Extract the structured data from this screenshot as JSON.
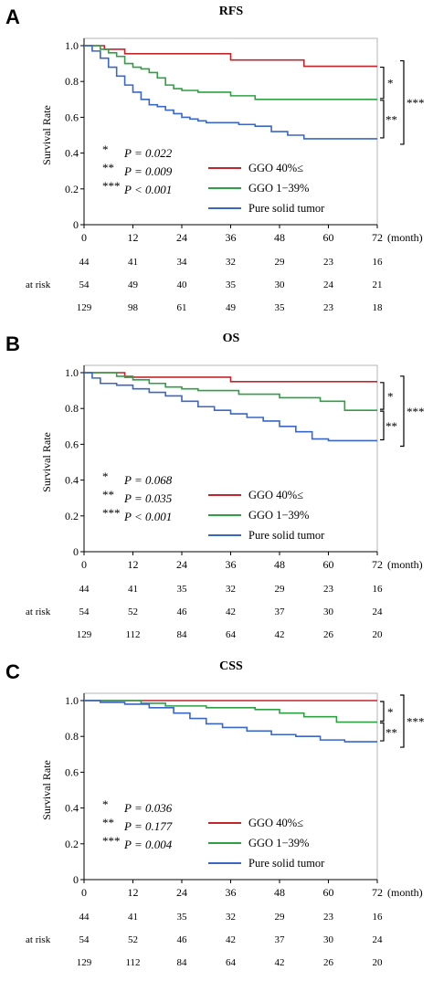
{
  "colors": {
    "ggo40": "#c0272d",
    "ggo1_39": "#2ea043",
    "pure_solid": "#3a67c4"
  },
  "legend_labels": [
    "GGO 40%≤",
    "GGO 1−39%",
    "Pure solid tumor"
  ],
  "pvalue_stars": [
    "*",
    "**",
    "***"
  ],
  "at_risk_label": "at risk",
  "month_label": "(month)",
  "ylabel": "Survival Rate",
  "chart_data": [
    {
      "type": "line",
      "panel": "A",
      "title": "RFS",
      "xlabel": "(month)",
      "ylabel": "Survival Rate",
      "xlim": [
        0,
        72
      ],
      "ylim": [
        0,
        1
      ],
      "x_ticks": [
        "0",
        "12",
        "24",
        "36",
        "48",
        "60",
        "72"
      ],
      "y_ticks": [
        "0",
        "0.2",
        "0.4",
        "0.6",
        "0.8",
        "1.0"
      ],
      "series": [
        {
          "name": "GGO 40%≤",
          "color": "#c0272d",
          "x": [
            0,
            5,
            10,
            36,
            54,
            72
          ],
          "y": [
            1.0,
            0.98,
            0.955,
            0.92,
            0.885,
            0.885
          ]
        },
        {
          "name": "GGO 1−39%",
          "color": "#2ea043",
          "x": [
            0,
            4,
            6,
            8,
            10,
            12,
            14,
            16,
            18,
            20,
            22,
            24,
            28,
            36,
            42,
            72
          ],
          "y": [
            1.0,
            0.98,
            0.96,
            0.94,
            0.9,
            0.88,
            0.87,
            0.85,
            0.82,
            0.78,
            0.76,
            0.75,
            0.74,
            0.72,
            0.7,
            0.7
          ]
        },
        {
          "name": "Pure solid tumor",
          "color": "#3a67c4",
          "x": [
            0,
            2,
            4,
            6,
            8,
            10,
            12,
            14,
            16,
            18,
            20,
            22,
            24,
            26,
            28,
            30,
            34,
            38,
            42,
            46,
            50,
            54,
            72
          ],
          "y": [
            1.0,
            0.97,
            0.93,
            0.88,
            0.83,
            0.78,
            0.74,
            0.7,
            0.67,
            0.66,
            0.64,
            0.62,
            0.6,
            0.59,
            0.58,
            0.57,
            0.57,
            0.56,
            0.55,
            0.52,
            0.5,
            0.48,
            0.48
          ]
        }
      ],
      "pvalues": [
        "P = 0.022",
        "P = 0.009",
        "P < 0.001"
      ],
      "at_risk": [
        [
          "44",
          "41",
          "34",
          "32",
          "29",
          "23",
          "16"
        ],
        [
          "54",
          "49",
          "40",
          "35",
          "30",
          "24",
          "21"
        ],
        [
          "129",
          "98",
          "61",
          "49",
          "35",
          "23",
          "18"
        ]
      ],
      "brackets": [
        "*",
        "**",
        "***"
      ]
    },
    {
      "type": "line",
      "panel": "B",
      "title": "OS",
      "xlabel": "(month)",
      "ylabel": "Survival Rate",
      "xlim": [
        0,
        72
      ],
      "ylim": [
        0,
        1
      ],
      "x_ticks": [
        "0",
        "12",
        "24",
        "36",
        "48",
        "60",
        "72"
      ],
      "y_ticks": [
        "0",
        "0.2",
        "0.4",
        "0.6",
        "0.8",
        "1.0"
      ],
      "series": [
        {
          "name": "GGO 40%≤",
          "color": "#c0272d",
          "x": [
            0,
            10,
            36,
            72
          ],
          "y": [
            1.0,
            0.975,
            0.95,
            0.95
          ]
        },
        {
          "name": "GGO 1−39%",
          "color": "#2ea043",
          "x": [
            0,
            8,
            12,
            16,
            20,
            24,
            28,
            38,
            48,
            58,
            64,
            72
          ],
          "y": [
            1.0,
            0.98,
            0.96,
            0.94,
            0.92,
            0.91,
            0.9,
            0.88,
            0.86,
            0.84,
            0.79,
            0.79
          ]
        },
        {
          "name": "Pure solid tumor",
          "color": "#3a67c4",
          "x": [
            0,
            2,
            4,
            8,
            12,
            16,
            20,
            24,
            28,
            32,
            36,
            40,
            44,
            48,
            52,
            56,
            60,
            72
          ],
          "y": [
            1.0,
            0.97,
            0.94,
            0.93,
            0.91,
            0.89,
            0.87,
            0.84,
            0.81,
            0.79,
            0.77,
            0.75,
            0.73,
            0.7,
            0.67,
            0.63,
            0.62,
            0.62
          ]
        }
      ],
      "pvalues": [
        "P = 0.068",
        "P = 0.035",
        "P < 0.001"
      ],
      "at_risk": [
        [
          "44",
          "41",
          "35",
          "32",
          "29",
          "23",
          "16"
        ],
        [
          "54",
          "52",
          "46",
          "42",
          "37",
          "30",
          "24"
        ],
        [
          "129",
          "112",
          "84",
          "64",
          "42",
          "26",
          "20"
        ]
      ],
      "brackets": [
        "*",
        "**",
        "***"
      ]
    },
    {
      "type": "line",
      "panel": "C",
      "title": "CSS",
      "xlabel": "(month)",
      "ylabel": "Survival Rate",
      "xlim": [
        0,
        72
      ],
      "ylim": [
        0,
        1
      ],
      "x_ticks": [
        "0",
        "12",
        "24",
        "36",
        "48",
        "60",
        "72"
      ],
      "y_ticks": [
        "0",
        "0.2",
        "0.4",
        "0.6",
        "0.8",
        "1.0"
      ],
      "series": [
        {
          "name": "GGO 40%≤",
          "color": "#c0272d",
          "x": [
            0,
            72
          ],
          "y": [
            1.0,
            1.0
          ]
        },
        {
          "name": "GGO 1−39%",
          "color": "#2ea043",
          "x": [
            0,
            14,
            20,
            30,
            42,
            48,
            54,
            62,
            72
          ],
          "y": [
            1.0,
            0.985,
            0.97,
            0.96,
            0.95,
            0.93,
            0.91,
            0.88,
            0.88
          ]
        },
        {
          "name": "Pure solid tumor",
          "color": "#3a67c4",
          "x": [
            0,
            4,
            10,
            16,
            22,
            26,
            30,
            34,
            40,
            46,
            52,
            58,
            64,
            72
          ],
          "y": [
            1.0,
            0.99,
            0.98,
            0.96,
            0.93,
            0.9,
            0.87,
            0.85,
            0.83,
            0.81,
            0.8,
            0.78,
            0.77,
            0.77
          ]
        }
      ],
      "pvalues": [
        "P = 0.036",
        "P = 0.177",
        "P = 0.004"
      ],
      "at_risk": [
        [
          "44",
          "41",
          "35",
          "32",
          "29",
          "23",
          "16"
        ],
        [
          "54",
          "52",
          "46",
          "42",
          "37",
          "30",
          "24"
        ],
        [
          "129",
          "112",
          "84",
          "64",
          "42",
          "26",
          "20"
        ]
      ],
      "brackets": [
        "*",
        "**",
        "***"
      ]
    }
  ]
}
